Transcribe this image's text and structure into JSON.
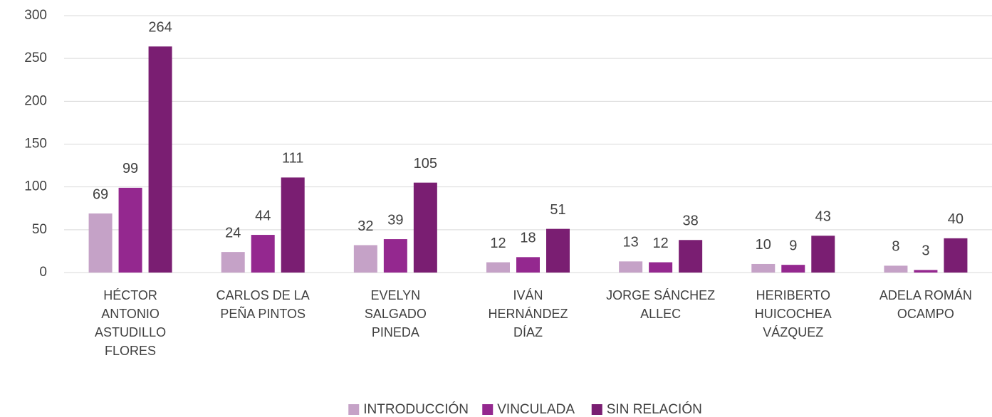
{
  "chart_data": {
    "type": "bar",
    "categories": [
      "HÉCTOR\nANTONIO\nASTUDILLO\nFLORES",
      "CARLOS DE LA\nPEÑA PINTOS",
      "EVELYN\nSALGADO\nPINEDA",
      "IVÁN\nHERNÁNDEZ\nDÍAZ",
      "JORGE SÁNCHEZ\nALLEC",
      "HERIBERTO\nHUICOCHEA\nVÁZQUEZ",
      "ADELA ROMÁN\nOCAMPO"
    ],
    "series": [
      {
        "name": "INTRODUCCIÓN",
        "color": "#c5a2c7",
        "values": [
          69,
          24,
          32,
          12,
          13,
          10,
          8
        ]
      },
      {
        "name": "VINCULADA",
        "color": "#94288f",
        "values": [
          99,
          44,
          39,
          18,
          12,
          9,
          3
        ]
      },
      {
        "name": "SIN RELACIÓN",
        "color": "#7a1e72",
        "values": [
          264,
          111,
          105,
          51,
          38,
          43,
          40
        ]
      }
    ],
    "ylim": [
      0,
      300
    ],
    "yticks": [
      0,
      50,
      100,
      150,
      200,
      250,
      300
    ],
    "grid": true,
    "legend": "bottom"
  }
}
